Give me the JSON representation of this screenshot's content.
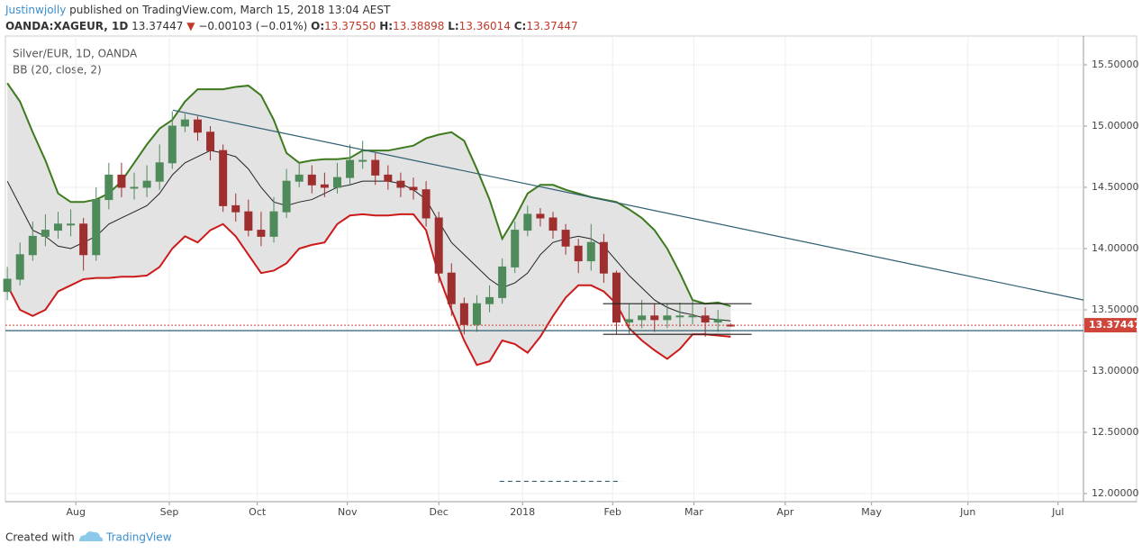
{
  "header": {
    "author": "Justinwjolly",
    "published": "published on TradingView.com, March 15, 2018 13:04 AEST",
    "symbol": "OANDA:XAGEUR, 1D",
    "change": "−0.00103 (−0.01%)",
    "ohlc": [
      {
        "label": "O:",
        "value": "13.37550"
      },
      {
        "label": "H:",
        "value": "13.38898"
      },
      {
        "label": "L:",
        "value": "13.36014"
      },
      {
        "label": "C:",
        "value": "13.37447"
      }
    ]
  },
  "footer": {
    "created": "Created with",
    "brand": "TradingView"
  },
  "chart_data": {
    "type": "candlestick",
    "title": "Silver/EUR, 1D, OANDA",
    "indicator": "BB (20, close, 2)",
    "up_color": "#4f8a5b",
    "down_color": "#9e2f2f",
    "open": [
      13.65,
      13.75,
      13.95,
      14.1,
      14.15,
      14.2,
      14.2,
      13.95,
      14.4,
      14.6,
      14.5,
      14.5,
      14.55,
      14.7,
      15.0,
      15.05,
      14.95,
      14.8,
      14.35,
      14.3,
      14.15,
      14.1,
      14.3,
      14.55,
      14.6,
      14.52,
      14.5,
      14.58,
      14.72,
      14.72,
      14.6,
      14.55,
      14.5,
      14.48,
      14.25,
      13.8,
      13.55,
      13.38,
      13.55,
      13.6,
      13.85,
      14.15,
      14.28,
      14.25,
      14.15,
      14.02,
      13.9,
      14.05,
      13.8,
      13.4,
      13.42,
      13.45,
      13.42,
      13.45,
      13.45,
      13.45,
      13.4,
      13.3755
    ],
    "high": [
      13.85,
      14.05,
      14.22,
      14.28,
      14.3,
      14.32,
      14.25,
      14.5,
      14.7,
      14.7,
      14.62,
      14.68,
      14.85,
      15.12,
      15.1,
      15.08,
      15.0,
      14.85,
      14.45,
      14.4,
      14.3,
      14.42,
      14.65,
      14.7,
      14.68,
      14.62,
      14.7,
      14.85,
      14.88,
      14.78,
      14.68,
      14.62,
      14.58,
      14.55,
      14.3,
      13.88,
      13.6,
      13.62,
      13.7,
      13.92,
      14.22,
      14.35,
      14.33,
      14.3,
      14.2,
      14.08,
      14.2,
      14.12,
      13.82,
      13.55,
      13.58,
      13.55,
      13.55,
      13.56,
      13.58,
      13.52,
      13.5,
      13.38898
    ],
    "low": [
      13.58,
      13.7,
      13.9,
      14.02,
      14.08,
      14.1,
      13.82,
      13.9,
      14.32,
      14.42,
      14.4,
      14.42,
      14.48,
      14.65,
      14.95,
      14.88,
      14.72,
      14.3,
      14.22,
      14.1,
      14.02,
      14.05,
      14.25,
      14.5,
      14.45,
      14.42,
      14.45,
      14.52,
      14.65,
      14.52,
      14.48,
      14.42,
      14.4,
      14.18,
      13.72,
      13.45,
      13.3,
      13.32,
      13.48,
      13.55,
      13.8,
      14.1,
      14.18,
      14.08,
      13.95,
      13.8,
      13.82,
      13.72,
      13.3,
      13.3,
      13.35,
      13.32,
      13.35,
      13.36,
      13.38,
      13.28,
      13.32,
      13.36014
    ],
    "close": [
      13.75,
      13.95,
      14.1,
      14.15,
      14.2,
      14.2,
      13.95,
      14.4,
      14.6,
      14.5,
      14.5,
      14.55,
      14.7,
      15.0,
      15.05,
      14.95,
      14.8,
      14.35,
      14.3,
      14.15,
      14.1,
      14.3,
      14.55,
      14.6,
      14.52,
      14.5,
      14.58,
      14.72,
      14.72,
      14.6,
      14.55,
      14.5,
      14.48,
      14.25,
      13.8,
      13.55,
      13.38,
      13.55,
      13.6,
      13.85,
      14.15,
      14.28,
      14.25,
      14.15,
      14.02,
      13.9,
      14.05,
      13.8,
      13.4,
      13.42,
      13.45,
      13.42,
      13.45,
      13.45,
      13.45,
      13.4,
      13.42,
      13.37447
    ],
    "bands": {
      "fill": "#e3e3e3",
      "upper": {
        "color": "#3d7a1c",
        "values": [
          15.35,
          15.2,
          14.95,
          14.72,
          14.45,
          14.38,
          14.38,
          14.4,
          14.45,
          14.55,
          14.7,
          14.85,
          14.98,
          15.05,
          15.2,
          15.3,
          15.3,
          15.3,
          15.32,
          15.33,
          15.25,
          15.05,
          14.78,
          14.7,
          14.72,
          14.73,
          14.73,
          14.74,
          14.8,
          14.8,
          14.8,
          14.82,
          14.84,
          14.9,
          14.93,
          14.95,
          14.88,
          14.65,
          14.4,
          14.08,
          14.25,
          14.45,
          14.52,
          14.52,
          14.48,
          14.45,
          14.42,
          14.4,
          14.38,
          14.32,
          14.25,
          14.15,
          14.0,
          13.8,
          13.58,
          13.55,
          13.56,
          13.53
        ]
      },
      "middle": {
        "color": "#222222",
        "values": [
          14.55,
          14.35,
          14.15,
          14.1,
          14.02,
          14.0,
          14.05,
          14.1,
          14.2,
          14.25,
          14.3,
          14.35,
          14.45,
          14.6,
          14.7,
          14.75,
          14.8,
          14.78,
          14.75,
          14.65,
          14.5,
          14.38,
          14.35,
          14.38,
          14.4,
          14.45,
          14.5,
          14.52,
          14.55,
          14.55,
          14.55,
          14.53,
          14.48,
          14.4,
          14.22,
          14.05,
          13.95,
          13.85,
          13.75,
          13.68,
          13.72,
          13.8,
          13.95,
          14.05,
          14.08,
          14.1,
          14.08,
          14.02,
          13.9,
          13.78,
          13.68,
          13.58,
          13.52,
          13.48,
          13.46,
          13.43,
          13.42,
          13.41
        ]
      },
      "lower": {
        "color": "#cc1a1a",
        "values": [
          13.7,
          13.5,
          13.45,
          13.5,
          13.65,
          13.7,
          13.75,
          13.76,
          13.76,
          13.77,
          13.77,
          13.78,
          13.85,
          14.0,
          14.1,
          14.05,
          14.15,
          14.2,
          14.1,
          13.95,
          13.8,
          13.82,
          13.88,
          14.0,
          14.03,
          14.05,
          14.2,
          14.27,
          14.28,
          14.27,
          14.27,
          14.28,
          14.28,
          14.15,
          13.78,
          13.5,
          13.25,
          13.05,
          13.08,
          13.25,
          13.22,
          13.15,
          13.28,
          13.45,
          13.6,
          13.7,
          13.7,
          13.65,
          13.55,
          13.35,
          13.25,
          13.17,
          13.1,
          13.18,
          13.3,
          13.3,
          13.29,
          13.28
        ]
      }
    },
    "drawings": [
      {
        "x": [
          13.05,
          84.8
        ],
        "y": [
          15.13,
          13.58
        ],
        "color": "#2f5f70",
        "dash": false
      },
      {
        "x": [
          -0.15,
          84.8
        ],
        "y": [
          13.33,
          13.33
        ],
        "color": "#2f5f70",
        "dash": false
      },
      {
        "x": [
          46.95,
          58.65
        ],
        "y": [
          13.55,
          13.55
        ],
        "color": "#222222",
        "dash": false
      },
      {
        "x": [
          46.95,
          58.65
        ],
        "y": [
          13.3,
          13.3
        ],
        "color": "#222222",
        "dash": false
      },
      {
        "x": [
          38.8,
          48.4
        ],
        "y": [
          12.1,
          12.1
        ],
        "color": "#2f5f70",
        "dash": true
      }
    ],
    "price_line_color": "#d0453a",
    "xlim": [
      -0.15,
      84.8
    ],
    "xticks": [
      {
        "value": 5.4,
        "label": "Aug"
      },
      {
        "value": 12.77,
        "label": "Sep"
      },
      {
        "value": 19.7,
        "label": "Oct"
      },
      {
        "value": 26.8,
        "label": "Nov"
      },
      {
        "value": 34.0,
        "label": "Dec"
      },
      {
        "value": 40.6,
        "label": "2018"
      },
      {
        "value": 47.7,
        "label": "Feb"
      },
      {
        "value": 54.1,
        "label": "Mar"
      },
      {
        "value": 61.3,
        "label": "Apr"
      },
      {
        "value": 68.1,
        "label": "May"
      },
      {
        "value": 75.7,
        "label": "Jun"
      },
      {
        "value": 82.8,
        "label": "Jul"
      }
    ],
    "ylim": [
      11.934,
      15.735
    ],
    "yticks": [
      {
        "value": 12,
        "label": "12.00000"
      },
      {
        "value": 12.5,
        "label": "12.50000"
      },
      {
        "value": 13,
        "label": "13.00000"
      },
      {
        "value": 13.5,
        "label": "13.50000"
      },
      {
        "value": 14,
        "label": "14.00000"
      },
      {
        "value": 14.5,
        "label": "14.50000"
      },
      {
        "value": 15,
        "label": "15.00000"
      },
      {
        "value": 15.5,
        "label": "15.50000"
      }
    ],
    "grid": true
  }
}
